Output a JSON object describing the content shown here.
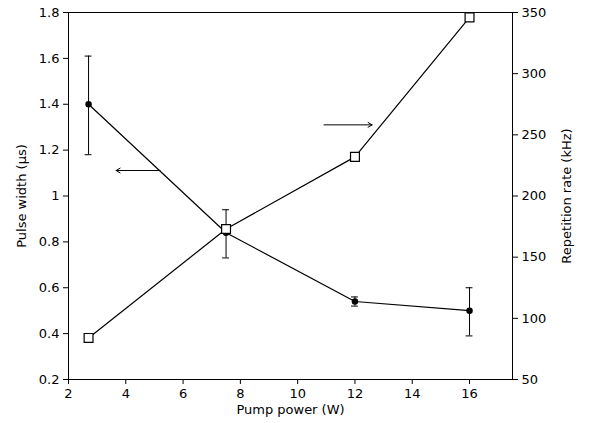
{
  "chart_data": {
    "type": "line",
    "xlabel": "Pump power (W)",
    "ylabel": "Pulse width (μs)",
    "y2label": "Repetition rate (kHz)",
    "x": [
      2.7,
      7.5,
      12,
      16
    ],
    "xlim": [
      2,
      17.5
    ],
    "xticks": [
      2,
      4,
      6,
      8,
      10,
      12,
      14,
      16
    ],
    "ylim": [
      0.2,
      1.8
    ],
    "yticks": [
      0.2,
      0.4,
      0.6,
      0.8,
      1,
      1.2,
      1.4,
      1.6,
      1.8
    ],
    "y2lim": [
      50,
      350
    ],
    "y2ticks": [
      50,
      100,
      150,
      200,
      250,
      300,
      350
    ],
    "grid": false,
    "series": [
      {
        "values": [
          1.4,
          0.84,
          0.54,
          0.5
        ],
        "error_low": [
          1.18,
          0.73,
          0.52,
          0.39
        ],
        "error_high": [
          1.61,
          0.94,
          0.56,
          0.6
        ],
        "color": "#000000",
        "marker": "circle"
      },
      {
        "values": [
          84,
          173,
          232,
          346
        ],
        "axis": "y2",
        "color": "#000000",
        "marker": "square"
      }
    ]
  }
}
